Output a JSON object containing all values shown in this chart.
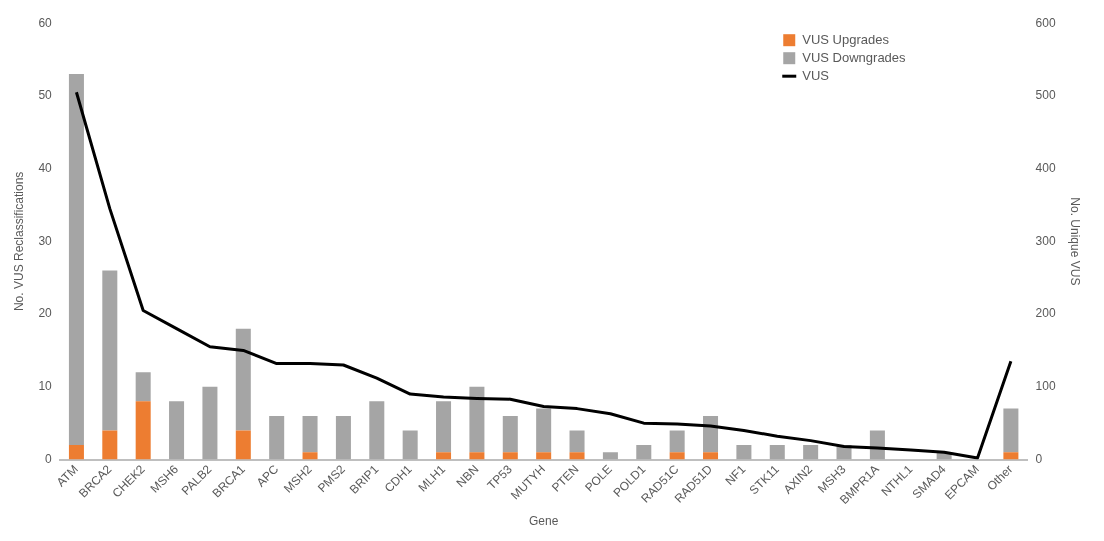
{
  "chart_data": {
    "type": "bar",
    "stacked": true,
    "xlabel": "Gene",
    "ylabel": "No. VUS Reclassifications",
    "y2label": "No. Unique VUS",
    "categories": [
      "ATM",
      "BRCA2",
      "CHEK2",
      "MSH6",
      "PALB2",
      "BRCA1",
      "APC",
      "MSH2",
      "PMS2",
      "BRIP1",
      "CDH1",
      "MLH1",
      "NBN",
      "TP53",
      "MUTYH",
      "PTEN",
      "POLE",
      "POLD1",
      "RAD51C",
      "RAD51D",
      "NF1",
      "STK11",
      "AXIN2",
      "MSH3",
      "BMPR1A",
      "NTHL1",
      "SMAD4",
      "EPCAM",
      "Other"
    ],
    "series": [
      {
        "name": "VUS Upgrades",
        "color": "#ed7d31",
        "values": [
          2,
          4,
          8,
          0,
          0,
          4,
          0,
          1,
          0,
          0,
          0,
          1,
          1,
          1,
          1,
          1,
          0,
          0,
          1,
          1,
          0,
          0,
          0,
          0,
          0,
          0,
          0,
          0,
          1
        ]
      },
      {
        "name": "VUS Downgrades",
        "color": "#a5a5a5",
        "values": [
          51,
          22,
          4,
          8,
          10,
          14,
          6,
          5,
          6,
          8,
          4,
          7,
          9,
          5,
          6,
          3,
          1,
          2,
          3,
          5,
          2,
          2,
          2,
          2,
          4,
          0,
          1,
          0,
          6
        ]
      },
      {
        "name": "VUS",
        "type": "line",
        "axis": "y2",
        "color": "#000000",
        "values": [
          505,
          345,
          205,
          180,
          155,
          150,
          132,
          132,
          130,
          112,
          90,
          86,
          84,
          83,
          73,
          70,
          63,
          50,
          49,
          46,
          40,
          32,
          26,
          18,
          16,
          13,
          10,
          2,
          135
        ]
      }
    ],
    "ylim": [
      0,
      60
    ],
    "yticks": [
      0,
      10,
      20,
      30,
      40,
      50,
      60
    ],
    "y2lim": [
      0,
      600
    ],
    "y2ticks": [
      0,
      100,
      200,
      300,
      400,
      500,
      600
    ],
    "grid": false,
    "legend": "top right",
    "marker": "none"
  }
}
